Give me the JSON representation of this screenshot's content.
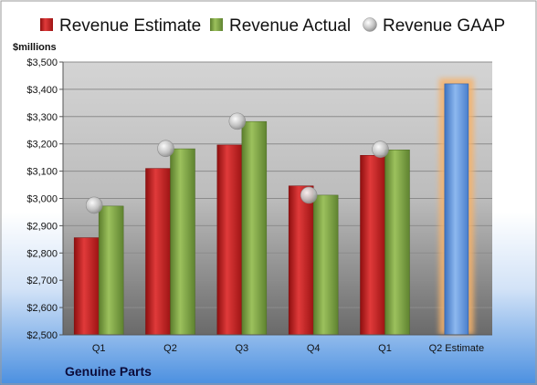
{
  "chart_data": {
    "type": "bar",
    "title": "",
    "ylabel": "$millions",
    "xlabel": "",
    "company": "Genuine Parts",
    "categories": [
      "Q1",
      "Q2",
      "Q3",
      "Q4",
      "Q1",
      "Q2 Estimate"
    ],
    "ylim": [
      2500,
      3500
    ],
    "yticks": [
      2500,
      2600,
      2700,
      2800,
      2900,
      3000,
      3100,
      3200,
      3300,
      3400,
      3500
    ],
    "ytick_labels": [
      "$2,500",
      "$2,600",
      "$2,700",
      "$2,800",
      "$2,900",
      "$3,000",
      "$3,100",
      "$3,200",
      "$3,300",
      "$3,400",
      "$3,500"
    ],
    "grid": true,
    "legend_position": "top",
    "series": [
      {
        "name": "Revenue Estimate",
        "kind": "bar",
        "color": "#cc1f1f",
        "values": [
          2856,
          3110,
          3196,
          3046,
          3158,
          null
        ]
      },
      {
        "name": "Revenue Actual",
        "kind": "bar",
        "color": "#7fa847",
        "values": [
          2972,
          3182,
          3282,
          3012,
          3178,
          null
        ]
      },
      {
        "name": "Revenue GAAP",
        "kind": "marker",
        "color": "#c8c8c8",
        "values": [
          2975,
          3183,
          3283,
          3012,
          3180,
          null
        ]
      },
      {
        "name": "",
        "kind": "bar",
        "color": "#6fa0e0",
        "highlight": "#f6b26b",
        "values": [
          null,
          null,
          null,
          null,
          null,
          3420
        ]
      }
    ]
  }
}
